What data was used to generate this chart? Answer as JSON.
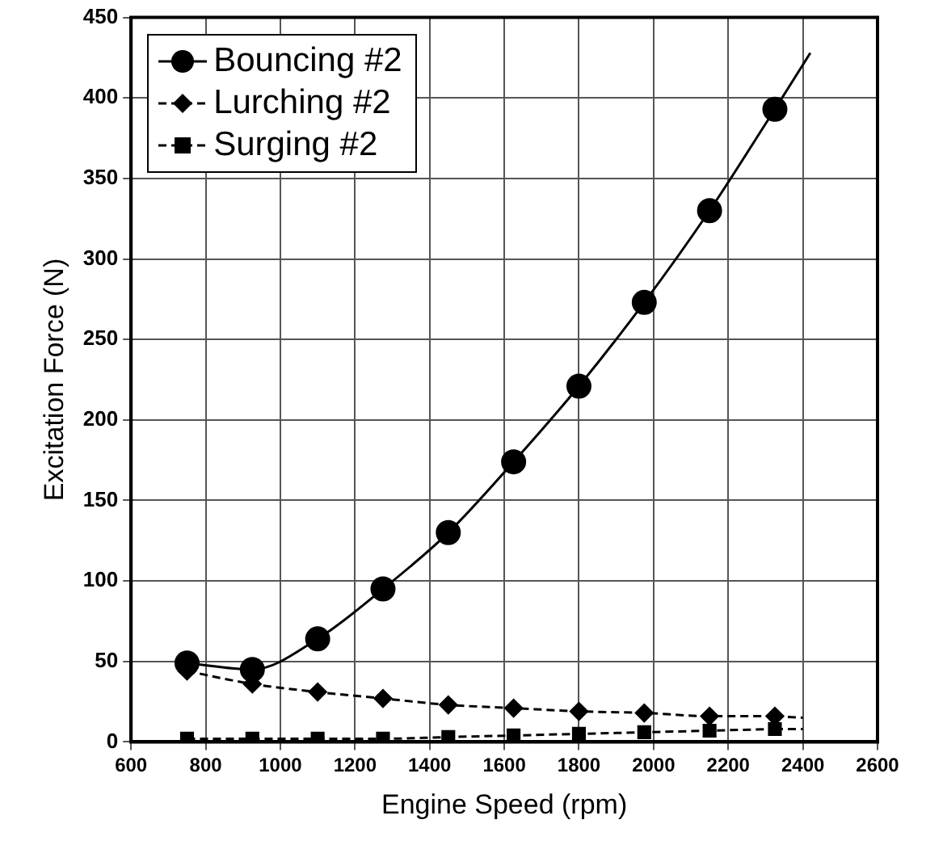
{
  "chart_data": {
    "type": "line",
    "xlabel": "Engine Speed (rpm)",
    "ylabel": "Excitation Force (N)",
    "xlim": [
      600,
      2600
    ],
    "xticks": [
      600,
      800,
      1000,
      1200,
      1400,
      1600,
      1800,
      2000,
      2200,
      2400,
      2600
    ],
    "ylim": [
      0,
      450
    ],
    "yticks": [
      0,
      50,
      100,
      150,
      200,
      250,
      300,
      350,
      400,
      450
    ],
    "grid": true,
    "legend": "top left",
    "series": [
      {
        "name": "Bouncing #2",
        "color": "#000000",
        "marker": "circle",
        "line_style": "solid",
        "x": [
          750,
          925,
          1100,
          1275,
          1450,
          1625,
          1800,
          1975,
          2150,
          2325
        ],
        "values": [
          49,
          45,
          64,
          95,
          130,
          174,
          221,
          273,
          330,
          393
        ]
      },
      {
        "name": "Lurching #2",
        "color": "#000000",
        "marker": "diamond",
        "line_style": "dashed",
        "x": [
          750,
          925,
          1100,
          1275,
          1450,
          1625,
          1800,
          1975,
          2150,
          2325
        ],
        "values": [
          44,
          36,
          31,
          27,
          23,
          21,
          19,
          18,
          16,
          16
        ]
      },
      {
        "name": "Surging #2",
        "color": "#000000",
        "marker": "square",
        "line_style": "dashed",
        "x": [
          750,
          925,
          1100,
          1275,
          1450,
          1625,
          1800,
          1975,
          2150,
          2325
        ],
        "values": [
          2,
          2,
          2,
          2,
          3,
          4,
          5,
          6,
          7,
          8
        ]
      },
      {
        "color": "#000000",
        "marker": "none",
        "line_style": "solid",
        "x": [
          2325,
          2420
        ],
        "values": [
          393,
          428
        ]
      },
      {
        "color": "#000000",
        "marker": "none",
        "line_style": "dashed",
        "x": [
          2325,
          2400
        ],
        "values": [
          16,
          15
        ]
      },
      {
        "color": "#000000",
        "marker": "none",
        "line_style": "dashed",
        "x": [
          2325,
          2400
        ],
        "values": [
          8,
          8
        ]
      }
    ]
  }
}
